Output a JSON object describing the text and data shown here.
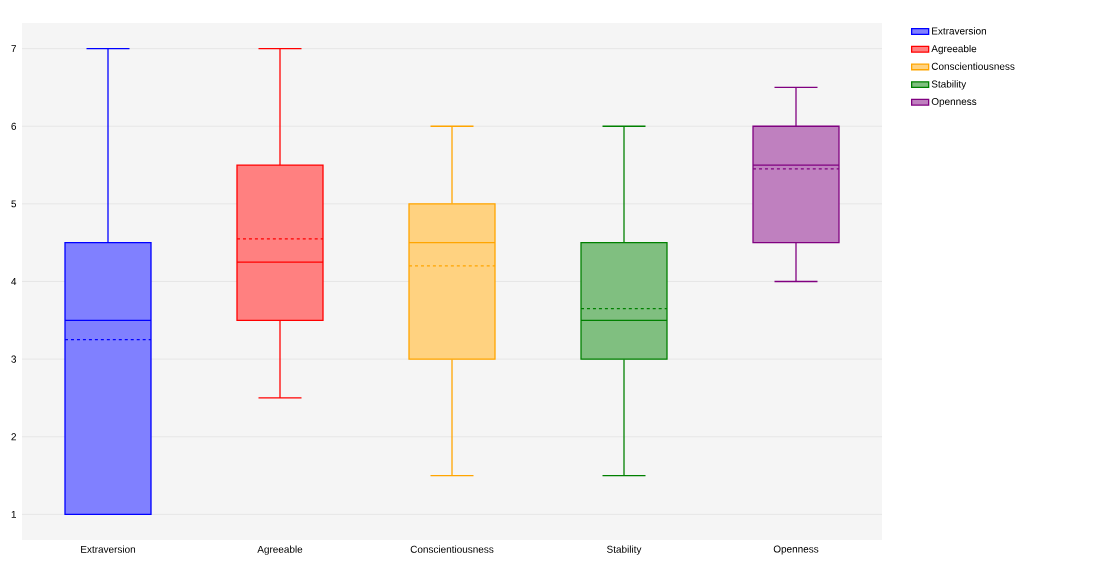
{
  "chart_data": {
    "type": "box",
    "categories": [
      "Extraversion",
      "Agreeable",
      "Conscientiousness",
      "Stability",
      "Openness"
    ],
    "series": [
      {
        "name": "Extraversion",
        "color": "#0000ff",
        "boxes": [
          {
            "low": 1,
            "q1": 1,
            "median": 3.5,
            "q3": 4.5,
            "high": 7,
            "mean": 3.25
          },
          null,
          null,
          null,
          null
        ]
      },
      {
        "name": "Agreeable",
        "color": "#ff0000",
        "boxes": [
          null,
          {
            "low": 2.5,
            "q1": 3.5,
            "median": 4.25,
            "q3": 5.5,
            "high": 7,
            "mean": 4.55
          },
          null,
          null,
          null
        ]
      },
      {
        "name": "Conscientiousness",
        "color": "#ffa500",
        "boxes": [
          null,
          null,
          {
            "low": 1.5,
            "q1": 3,
            "median": 4.5,
            "q3": 5,
            "high": 6,
            "mean": 4.2
          },
          null,
          null
        ]
      },
      {
        "name": "Stability",
        "color": "#008000",
        "boxes": [
          null,
          null,
          null,
          {
            "low": 1.5,
            "q1": 3,
            "median": 3.5,
            "q3": 4.5,
            "high": 6,
            "mean": 3.65
          },
          null
        ]
      },
      {
        "name": "Openness",
        "color": "#800080",
        "boxes": [
          null,
          null,
          null,
          null,
          {
            "low": 4,
            "q1": 4.5,
            "median": 5.5,
            "q3": 6,
            "high": 6.5,
            "mean": 5.45
          }
        ]
      }
    ],
    "ylim": [
      0.67,
      7.33
    ],
    "yticks": [
      1,
      2,
      3,
      4,
      5,
      6,
      7
    ],
    "grid": "y",
    "legend": "top right"
  }
}
